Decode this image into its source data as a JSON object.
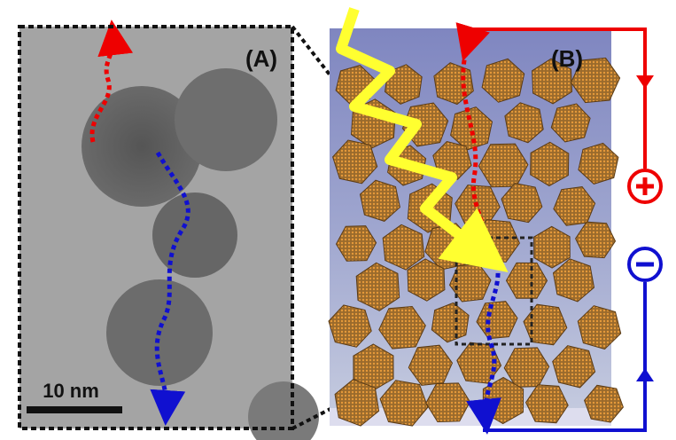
{
  "panels": [
    {
      "label": "(A)",
      "scale_bar": "10 nm"
    },
    {
      "label": "(B)"
    }
  ]
}
